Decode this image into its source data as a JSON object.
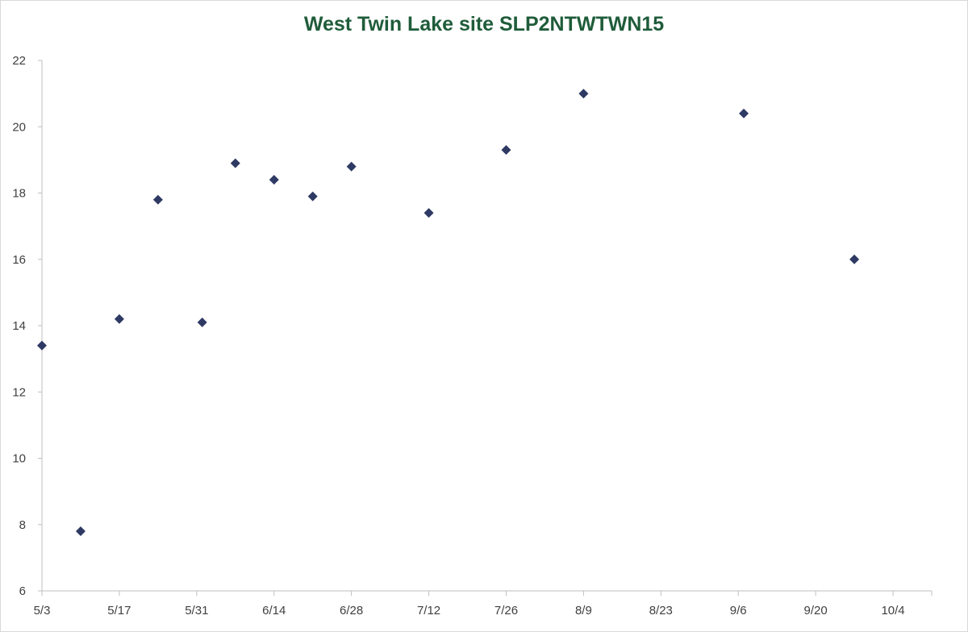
{
  "chart_data": {
    "type": "scatter",
    "title": "West Twin Lake site SLP2NTWTWN15",
    "title_color": "#1f5c3a",
    "marker_color": "#2e3a63",
    "marker_shape": "diamond",
    "axis_color": "#bfbfbf",
    "xlabel": "",
    "ylabel": "",
    "grid": false,
    "legend": "none",
    "year": 2015,
    "x_ticks": [
      "5/3",
      "5/17",
      "5/31",
      "6/14",
      "6/28",
      "7/12",
      "7/26",
      "8/9",
      "8/23",
      "9/6",
      "9/20",
      "10/4"
    ],
    "xlim": [
      "2015-05-03",
      "2015-10-11"
    ],
    "y_ticks": [
      6,
      8,
      10,
      12,
      14,
      16,
      18,
      20,
      22
    ],
    "ylim": [
      6,
      22
    ],
    "points": [
      {
        "x": "2015-05-03",
        "y": 13.4
      },
      {
        "x": "2015-05-10",
        "y": 7.8
      },
      {
        "x": "2015-05-17",
        "y": 14.2
      },
      {
        "x": "2015-05-24",
        "y": 17.8
      },
      {
        "x": "2015-06-01",
        "y": 14.1
      },
      {
        "x": "2015-06-07",
        "y": 18.9
      },
      {
        "x": "2015-06-14",
        "y": 18.4
      },
      {
        "x": "2015-06-21",
        "y": 17.9
      },
      {
        "x": "2015-06-28",
        "y": 18.8
      },
      {
        "x": "2015-07-12",
        "y": 17.4
      },
      {
        "x": "2015-07-26",
        "y": 19.3
      },
      {
        "x": "2015-08-09",
        "y": 21.0
      },
      {
        "x": "2015-09-07",
        "y": 20.4
      },
      {
        "x": "2015-09-27",
        "y": 16.0
      }
    ]
  }
}
